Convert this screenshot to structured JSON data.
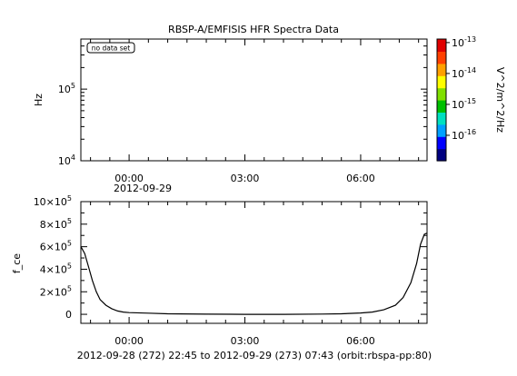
{
  "chart_data": [
    {
      "type": "heatmap",
      "title": "RBSP-A/EMFISIS  HFR Spectra Data",
      "ylabel": "Hz",
      "y_scale": "log",
      "ylim": [
        10000,
        500000
      ],
      "y_ticks": [
        {
          "value": 10000,
          "base": "10",
          "exp": "4"
        },
        {
          "value": 100000,
          "base": "10",
          "exp": "5"
        }
      ],
      "x_ticks": [
        {
          "label": "00:00",
          "hour": 0
        },
        {
          "label": "03:00",
          "hour": 3
        },
        {
          "label": "06:00",
          "hour": 6
        }
      ],
      "x_date_label": "2012-09-29",
      "annotation": "no data set",
      "colorbar": {
        "label": "V^2/m^2/Hz",
        "scale": "log",
        "range": [
          1.5e-17,
          1.3e-13
        ],
        "colors": [
          "#000080",
          "#0000ff",
          "#00a0ff",
          "#00e0c0",
          "#00c000",
          "#80e000",
          "#ffff00",
          "#ffa000",
          "#ff4000",
          "#e00000"
        ],
        "ticks": [
          {
            "value": 1e-13,
            "base": "10",
            "exp": "-13"
          },
          {
            "value": 1e-14,
            "base": "10",
            "exp": "-14"
          },
          {
            "value": 1e-15,
            "base": "10",
            "exp": "-15"
          },
          {
            "value": 1e-16,
            "base": "10",
            "exp": "-16"
          }
        ]
      }
    },
    {
      "type": "line",
      "ylabel": "f_ce",
      "xlim_hours": [
        -1.25,
        7.72
      ],
      "ylim": [
        -80000,
        1000000
      ],
      "y_ticks": [
        {
          "value": 1000000,
          "mant": "10×10",
          "exp": "5"
        },
        {
          "value": 800000,
          "mant": "8×10",
          "exp": "5"
        },
        {
          "value": 600000,
          "mant": "6×10",
          "exp": "5"
        },
        {
          "value": 400000,
          "mant": "4×10",
          "exp": "5"
        },
        {
          "value": 200000,
          "mant": "2×10",
          "exp": "5"
        },
        {
          "value": 0,
          "mant": "0",
          "exp": ""
        }
      ],
      "x_ticks": [
        {
          "label": "00:00",
          "hour": 0
        },
        {
          "label": "03:00",
          "hour": 3
        },
        {
          "label": "06:00",
          "hour": 6
        }
      ],
      "series": [
        {
          "x_hours": [
            -1.25,
            -1.15,
            -1.05,
            -0.95,
            -0.85,
            -0.75,
            -0.6,
            -0.45,
            -0.3,
            -0.15,
            0.0,
            0.5,
            1.0,
            2.0,
            3.0,
            4.0,
            5.0,
            5.5,
            6.0,
            6.3,
            6.6,
            6.9,
            7.1,
            7.3,
            7.45,
            7.55,
            7.65,
            7.72
          ],
          "values": [
            600000,
            540000,
            420000,
            300000,
            200000,
            130000,
            80000,
            50000,
            30000,
            20000,
            15000,
            10000,
            5000,
            1000,
            0,
            0,
            2000,
            5000,
            12000,
            20000,
            40000,
            80000,
            150000,
            280000,
            450000,
            620000,
            710000,
            720000
          ]
        }
      ]
    }
  ],
  "footer": "2012-09-28 (272) 22:45 to 2012-09-29 (273) 07:43 (orbit:rbspa-pp:80)"
}
